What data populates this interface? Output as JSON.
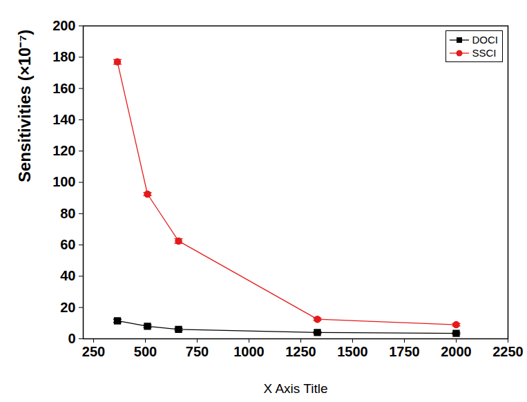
{
  "chart_data": {
    "type": "line",
    "x_label": "X Axis Title",
    "y_label": "Sensitivities (×10⁻⁷)",
    "x": [
      365,
      510,
      660,
      1330,
      2000
    ],
    "series": [
      {
        "name": "DOCI",
        "color": "#000000",
        "marker": "square",
        "values": [
          11.5,
          8,
          6,
          4,
          3.5
        ],
        "errors": [
          1,
          0.8,
          0.7,
          0.5,
          0.5
        ]
      },
      {
        "name": "SSCI",
        "color": "#e41a1c",
        "marker": "circle",
        "values": [
          177,
          92.5,
          62.5,
          12.5,
          9
        ],
        "errors": [
          1.5,
          1,
          1.5,
          0.8,
          0.8
        ]
      }
    ],
    "xlim": [
      200,
      2250
    ],
    "xticks": [
      250,
      500,
      750,
      1000,
      1250,
      1500,
      1750,
      2000,
      2250
    ],
    "ylim": [
      0,
      200
    ],
    "yticks": [
      0,
      20,
      40,
      60,
      80,
      100,
      120,
      140,
      160,
      180,
      200
    ],
    "grid": false,
    "legend": "upper right"
  }
}
